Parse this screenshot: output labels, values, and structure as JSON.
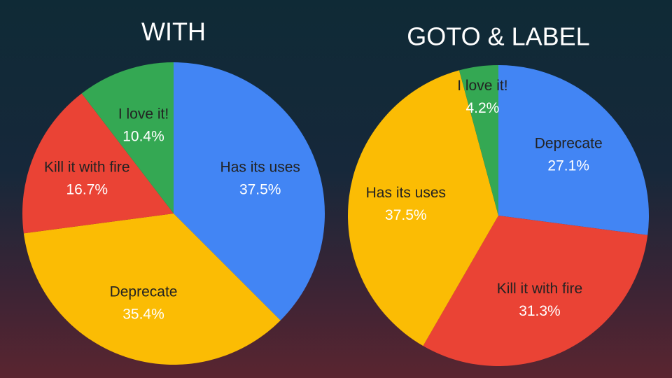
{
  "chart_data": [
    {
      "type": "pie",
      "title": "WITH",
      "categories": [
        "Has its uses",
        "Deprecate",
        "Kill it with fire",
        "I love it!"
      ],
      "values": [
        37.5,
        35.4,
        16.7,
        10.4
      ],
      "value_labels": [
        "37.5%",
        "35.4%",
        "16.7%",
        "10.4%"
      ],
      "colors": [
        "#4285f4",
        "#fbbc04",
        "#ea4335",
        "#34a853"
      ]
    },
    {
      "type": "pie",
      "title": "GOTO & LABEL",
      "categories": [
        "Deprecate",
        "Kill it with fire",
        "Has its uses",
        "I love it!"
      ],
      "values": [
        27.1,
        31.3,
        37.5,
        4.2
      ],
      "value_labels": [
        "27.1%",
        "31.3%",
        "37.5%",
        "4.2%"
      ],
      "colors": [
        "#4285f4",
        "#ea4335",
        "#fbbc04",
        "#34a853"
      ]
    }
  ]
}
